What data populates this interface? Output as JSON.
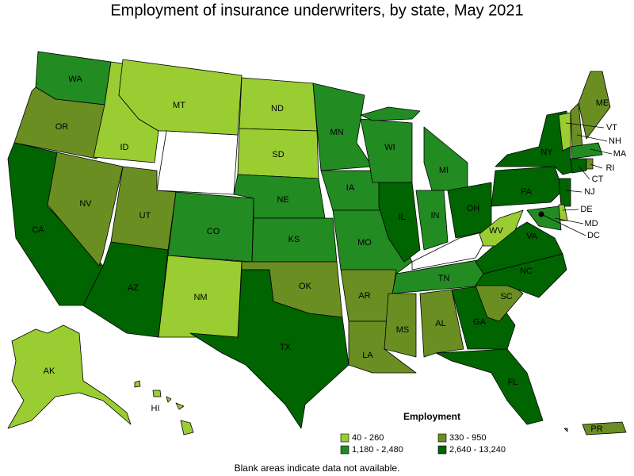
{
  "title": "Employment of insurance underwriters, by state, May 2021",
  "legend": {
    "title": "Employment",
    "classes": [
      {
        "label": "40 - 260",
        "color": "#9acd32"
      },
      {
        "label": "330 - 950",
        "color": "#6b8e23"
      },
      {
        "label": "1,180 - 2,480",
        "color": "#228b22"
      },
      {
        "label": "2,640 - 13,240",
        "color": "#006400"
      }
    ]
  },
  "footnote": "Blank areas indicate data not available.",
  "states": [
    {
      "label": "WA",
      "class": 2
    },
    {
      "label": "OR",
      "class": 1
    },
    {
      "label": "CA",
      "class": 3
    },
    {
      "label": "NV",
      "class": 1
    },
    {
      "label": "ID",
      "class": 0
    },
    {
      "label": "MT",
      "class": 0
    },
    {
      "label": "UT",
      "class": 1
    },
    {
      "label": "AZ",
      "class": 3
    },
    {
      "label": "CO",
      "class": 2
    },
    {
      "label": "NM",
      "class": 0
    },
    {
      "label": "ND",
      "class": 0
    },
    {
      "label": "SD",
      "class": 0
    },
    {
      "label": "NE",
      "class": 2
    },
    {
      "label": "KS",
      "class": 2
    },
    {
      "label": "OK",
      "class": 1
    },
    {
      "label": "TX",
      "class": 3
    },
    {
      "label": "MN",
      "class": 2
    },
    {
      "label": "IA",
      "class": 2
    },
    {
      "label": "MO",
      "class": 2
    },
    {
      "label": "AR",
      "class": 1
    },
    {
      "label": "LA",
      "class": 1
    },
    {
      "label": "WI",
      "class": 2
    },
    {
      "label": "IL",
      "class": 3
    },
    {
      "label": "MI",
      "class": 2
    },
    {
      "label": "IN",
      "class": 2
    },
    {
      "label": "OH",
      "class": 3
    },
    {
      "label": "TN",
      "class": 2
    },
    {
      "label": "MS",
      "class": 1
    },
    {
      "label": "AL",
      "class": 1
    },
    {
      "label": "GA",
      "class": 3
    },
    {
      "label": "FL",
      "class": 3
    },
    {
      "label": "SC",
      "class": 1
    },
    {
      "label": "NC",
      "class": 3
    },
    {
      "label": "VA",
      "class": 3
    },
    {
      "label": "WV",
      "class": 0
    },
    {
      "label": "PA",
      "class": 3
    },
    {
      "label": "NY",
      "class": 3
    },
    {
      "label": "VT",
      "class": 0
    },
    {
      "label": "NH",
      "class": 1
    },
    {
      "label": "ME",
      "class": 1
    },
    {
      "label": "MA",
      "class": 2
    },
    {
      "label": "CT",
      "class": 3
    },
    {
      "label": "RI",
      "class": 1
    },
    {
      "label": "NJ",
      "class": 3
    },
    {
      "label": "DE",
      "class": 0
    },
    {
      "label": "MD",
      "class": 2
    },
    {
      "label": "DC",
      "class": 3
    },
    {
      "label": "AK",
      "class": 0
    },
    {
      "label": "HI",
      "class": 0
    },
    {
      "label": "PR",
      "class": 1
    }
  ]
}
